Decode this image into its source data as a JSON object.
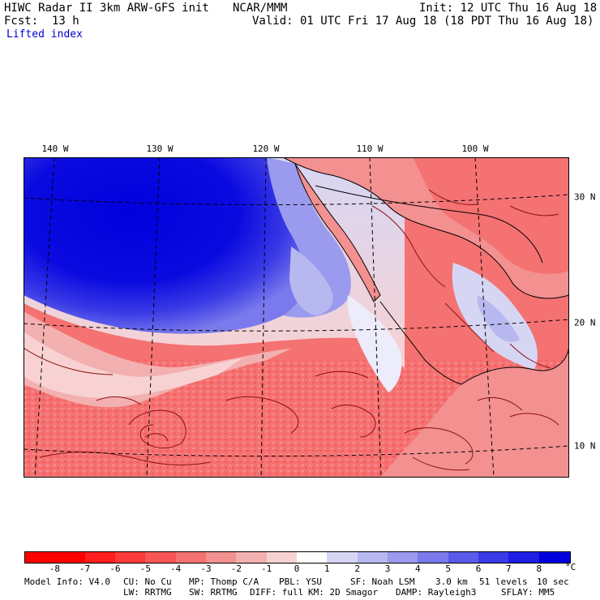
{
  "header": {
    "title": "HIWC Radar II 3km ARW-GFS init",
    "org": "NCAR/MMM",
    "init": "Init: 12 UTC Thu 16 Aug 18",
    "fcst_label": "Fcst:",
    "fcst_value": "13 h",
    "valid": "Valid: 01 UTC Fri 17 Aug 18 (18 PDT Thu 16 Aug 18)",
    "field": "Lifted index"
  },
  "map": {
    "region": "Eastern Pacific / Mexico",
    "lon_labels": [
      "140 W",
      "130 W",
      "120 W",
      "110 W",
      "100 W"
    ],
    "lat_labels": [
      "30 N",
      "20 N",
      "10 N"
    ]
  },
  "colorbar": {
    "unit": "°C",
    "tick_labels": [
      "-8",
      "-7",
      "-6",
      "-5",
      "-4",
      "-3",
      "-2",
      "-1",
      "0",
      "1",
      "2",
      "3",
      "4",
      "5",
      "6",
      "7",
      "8"
    ],
    "colors": [
      "#ff0000",
      "#ff1e1e",
      "#fb3a3a",
      "#f85656",
      "#f57272",
      "#f39090",
      "#f3b0b0",
      "#f8d2d2",
      "#ffffff",
      "#d6d6f4",
      "#b8b8f0",
      "#9a9aee",
      "#7a7aec",
      "#5a5aea",
      "#3a3ae6",
      "#1e1ee4",
      "#0000dd"
    ]
  },
  "footer": {
    "line1": [
      "Model Info: V4.0",
      "CU: No Cu",
      "MP: Thomp C/A",
      "PBL: YSU",
      "SF: Noah LSM",
      "3.0 km",
      "51 levels",
      "10 sec"
    ],
    "line2": [
      "LW: RRTMG",
      "SW: RRTMG",
      "DIFF: full",
      "KM: 2D Smagor",
      "DAMP: Rayleigh3",
      "SFLAY: MM5"
    ]
  }
}
